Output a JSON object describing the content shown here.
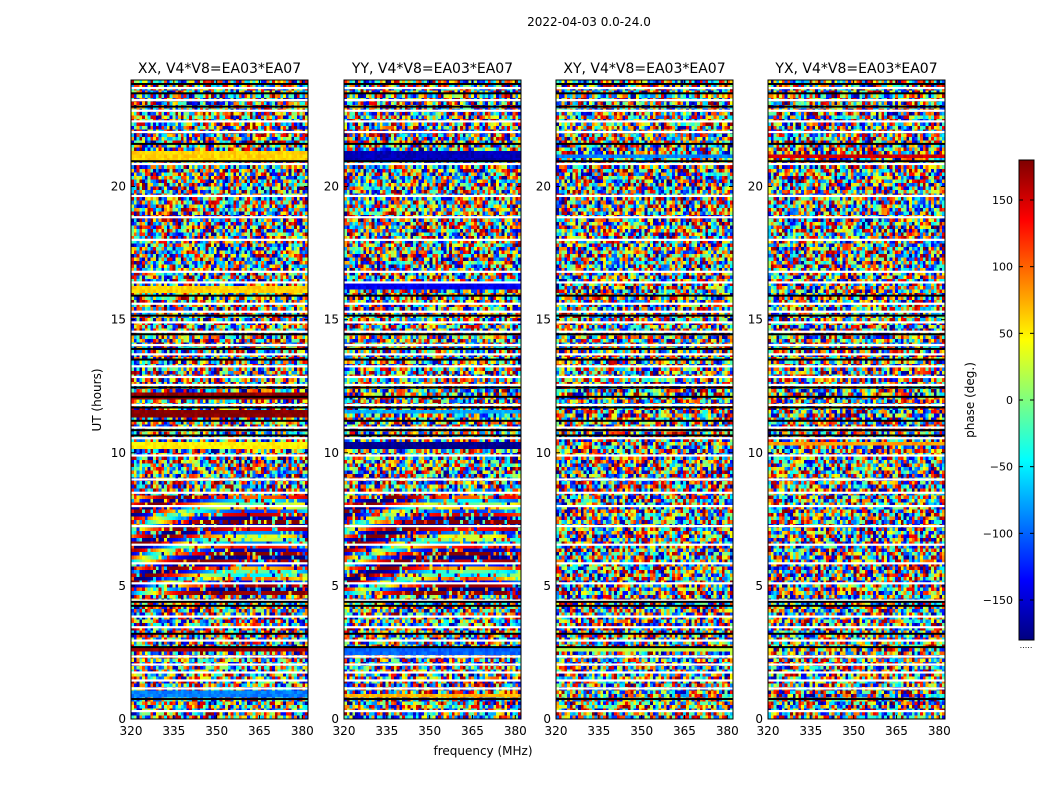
{
  "figure": {
    "suptitle": "2022-04-03 0.0-24.0"
  },
  "chart_data": {
    "type": "heatmap",
    "title": "2022-04-03 0.0-24.0",
    "xlabel": "frequency (MHz)",
    "ylabel": "UT (hours)",
    "xlim": [
      320,
      382
    ],
    "ylim": [
      0,
      24
    ],
    "xticks": [
      320,
      335,
      350,
      365,
      380
    ],
    "yticks": [
      0,
      5,
      10,
      15,
      20
    ],
    "colorbar": {
      "label": "phase (deg.)",
      "range": [
        -180,
        180
      ],
      "ticks": [
        -150,
        -100,
        -50,
        0,
        50,
        100,
        150
      ],
      "tick_labels": [
        "−150",
        "−100",
        "−50",
        "0",
        "50",
        "100",
        "150"
      ],
      "colormap": [
        "#00007f",
        "#0000ff",
        "#007fff",
        "#00ffff",
        "#7fff7f",
        "#ffff00",
        "#ff7f00",
        "#ff0000",
        "#7f0000"
      ]
    },
    "panels": [
      {
        "title": "XX, V4*V8=EA03*EA07",
        "fringe_hours": [
          4.7,
          8.4
        ],
        "coherent_bands": [
          {
            "ut": [
              0.85,
              1.0
            ],
            "phase": -90
          },
          {
            "ut": [
              2.5,
              2.65
            ],
            "phase": 170
          },
          {
            "ut": [
              10.15,
              10.35
            ],
            "phase": 50
          },
          {
            "ut": [
              11.3,
              11.6
            ],
            "phase": 180
          },
          {
            "ut": [
              12.0,
              12.25
            ],
            "phase": 175
          },
          {
            "ut": [
              16.0,
              16.2
            ],
            "phase": 60
          },
          {
            "ut": [
              21.0,
              21.3
            ],
            "phase": 60
          }
        ]
      },
      {
        "title": "YY, V4*V8=EA03*EA07",
        "fringe_hours": [
          4.7,
          8.4
        ],
        "coherent_bands": [
          {
            "ut": [
              0.8,
              0.95
            ],
            "phase": 70
          },
          {
            "ut": [
              2.45,
              2.65
            ],
            "phase": -100
          },
          {
            "ut": [
              10.2,
              10.4
            ],
            "phase": -175
          },
          {
            "ut": [
              11.4,
              11.65
            ],
            "phase": -75
          },
          {
            "ut": [
              16.2,
              16.35
            ],
            "phase": -140
          },
          {
            "ut": [
              21.0,
              21.3
            ],
            "phase": -160
          }
        ]
      },
      {
        "title": "XY, V4*V8=EA03*EA07",
        "fringe_hours": null,
        "coherent_bands": [
          {
            "ut": [
              2.55,
              2.7
            ],
            "phase": 20
          },
          {
            "ut": [
              21.05,
              21.25
            ],
            "phase": -90
          }
        ]
      },
      {
        "title": "YX, V4*V8=EA03*EA07",
        "fringe_hours": null,
        "coherent_bands": [
          {
            "ut": [
              10.25,
              10.4
            ],
            "phase": 80
          },
          {
            "ut": [
              21.05,
              21.25
            ],
            "phase": 150
          }
        ]
      }
    ],
    "flagged_white_ut": [
      0.3,
      1.15,
      1.45,
      1.75,
      2.05,
      2.35,
      2.95,
      3.45,
      3.85,
      4.45,
      5.1,
      5.85,
      6.55,
      7.25,
      8.0,
      8.5,
      9.0,
      9.9,
      10.55,
      10.95,
      11.8,
      12.55,
      12.85,
      13.25,
      13.7,
      14.05,
      14.55,
      14.9,
      15.3,
      15.6,
      16.4,
      16.8,
      18.0,
      18.85,
      19.65,
      20.85,
      22.05,
      22.45,
      22.85,
      23.25,
      23.7
    ],
    "flagged_black_ut": [
      0.75,
      2.7,
      3.2,
      4.25,
      4.4,
      10.65,
      10.85,
      11.2,
      11.7,
      12.1,
      12.45,
      13.5,
      13.9,
      14.45,
      15.15,
      15.9,
      20.95,
      21.6,
      23.0,
      23.5,
      23.85
    ]
  }
}
